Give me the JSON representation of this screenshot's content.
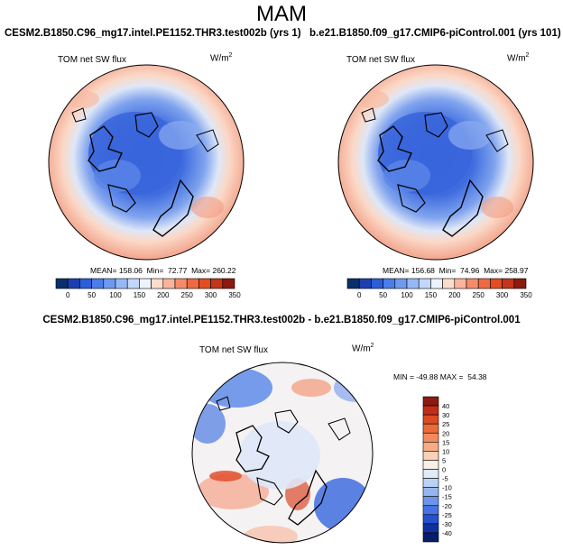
{
  "season": "MAM",
  "panels": {
    "left": {
      "case_label": "CESM2.B1850.C96_mg17.intel.PE1152.THR3.test002b (yrs 1)",
      "variable": "TOM net SW flux",
      "units_base": "W/m",
      "units_exp": "2",
      "mean_label": "MEAN=",
      "mean": "158.06",
      "min_label": "Min=",
      "min": "72.77",
      "max_label": "Max=",
      "max": "260.22"
    },
    "right": {
      "case_label": "b.e21.B1850.f09_g17.CMIP6-piControl.001 (yrs 101)",
      "variable": "TOM net SW flux",
      "units_base": "W/m",
      "units_exp": "2",
      "mean_label": "MEAN=",
      "mean": "156.68",
      "min_label": "Min=",
      "min": "74.96",
      "max_label": "Max=",
      "max": "258.97"
    },
    "diff": {
      "case_label": "CESM2.B1850.C96_mg17.intel.PE1152.THR3.test002b - b.e21.B1850.f09_g17.CMIP6-piControl.001",
      "variable": "TOM net SW flux",
      "units_base": "W/m",
      "units_exp": "2",
      "min_label": "MIN =",
      "min": "-49.88",
      "max_label": "MAX =",
      "max": "54.38"
    }
  },
  "colorbars": {
    "abs": {
      "tick_labels": [
        "0",
        "50",
        "100",
        "150",
        "200",
        "250",
        "300",
        "350"
      ],
      "colors": [
        "#08306b",
        "#1c3fb0",
        "#2b5ed8",
        "#4b7de8",
        "#6e9af0",
        "#96b9f5",
        "#c2d7fa",
        "#eef2fb",
        "#fcdccb",
        "#f9b49a",
        "#f48c6a",
        "#ee6a44",
        "#e24d22",
        "#c3361a",
        "#8b1a10"
      ]
    },
    "diff": {
      "tick_labels": [
        "40",
        "30",
        "25",
        "20",
        "15",
        "10",
        "5",
        "0",
        "-5",
        "-10",
        "-15",
        "-20",
        "-25",
        "-30",
        "-40"
      ],
      "colors": [
        "#8b1a10",
        "#c42c18",
        "#dc4a20",
        "#ec6a3a",
        "#f38b5e",
        "#f7ab84",
        "#fad0b6",
        "#fbefe8",
        "#dfeafa",
        "#bcd2f5",
        "#95b6f0",
        "#6c94ea",
        "#4673e3",
        "#2451cf",
        "#12309d",
        "#071c6a"
      ]
    }
  },
  "map_colors": {
    "warm": "#f4a889",
    "warm_light": "#fbd8c6",
    "cool": "#3f6ddf",
    "cool_mid": "#6e97ec",
    "cool_light": "#b8cff5",
    "neutral": "#f2f1f4",
    "red_strong": "#d9482a",
    "blue_strong": "#2d58d3"
  }
}
